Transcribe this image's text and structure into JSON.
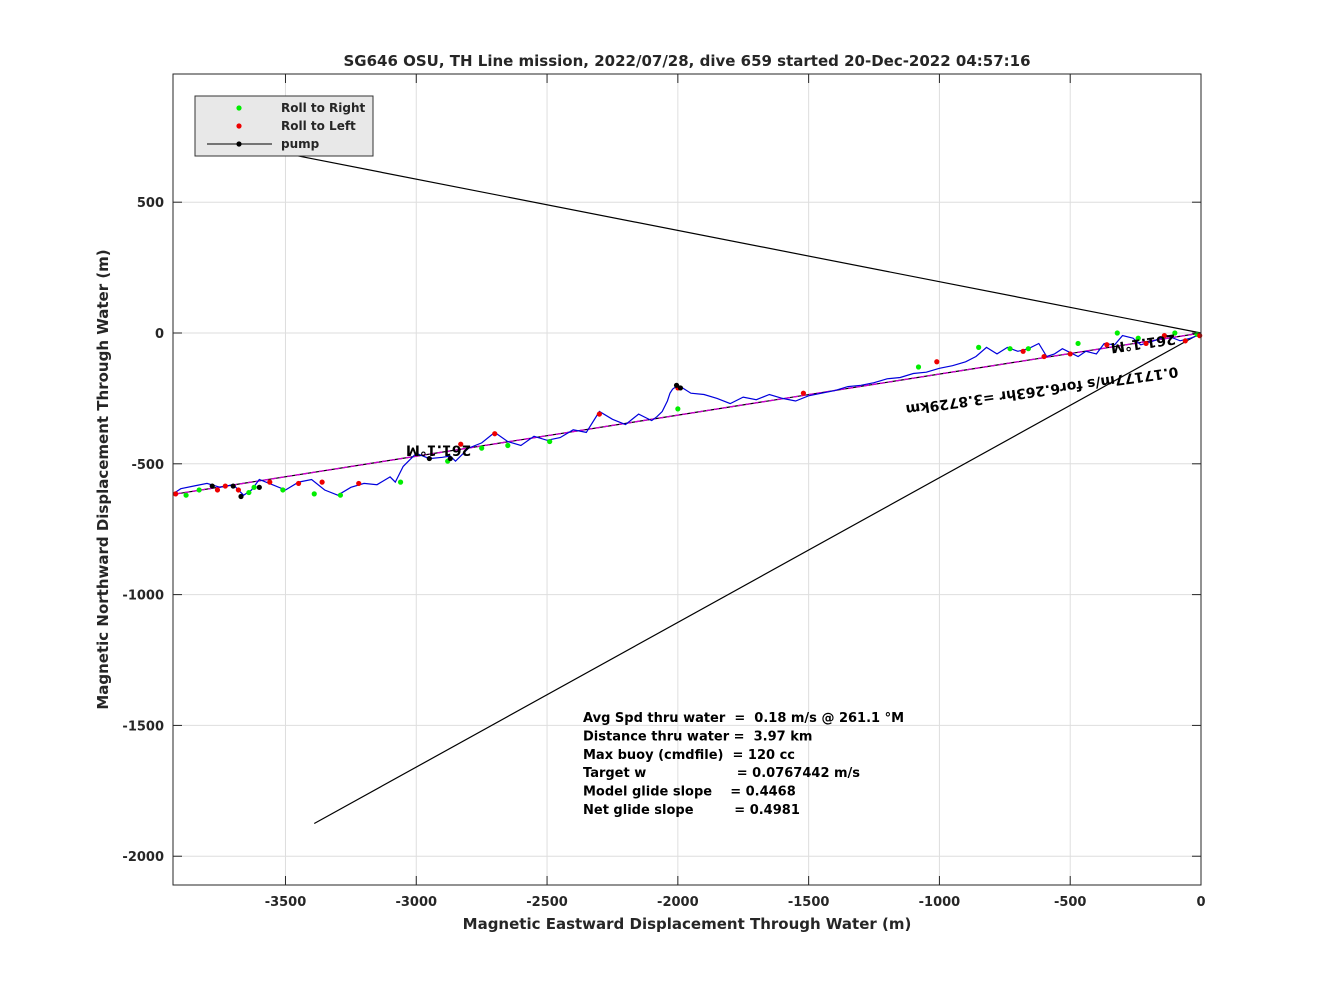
{
  "chart_data": {
    "type": "line",
    "title": "SG646 OSU, TH Line mission, 2022/07/28, dive 659 started 20-Dec-2022 04:57:16",
    "xlabel": "Magnetic Eastward Displacement Through Water (m)",
    "ylabel": "Magnetic Northward Displacement Through Water (m)",
    "xlim": [
      -3930,
      0
    ],
    "ylim": [
      -2110,
      990
    ],
    "xticks": [
      -3500,
      -3000,
      -2500,
      -2000,
      -1500,
      -1000,
      -500,
      0
    ],
    "yticks": [
      500,
      0,
      -500,
      -1000,
      -1500,
      -2000
    ],
    "grid": true,
    "legend": {
      "position": "top-left",
      "entries": [
        {
          "label": "Roll to Right",
          "color": "#00ee00"
        },
        {
          "label": "Roll to Left",
          "color": "#ee0000"
        },
        {
          "label": "pump",
          "color": "#000000"
        }
      ]
    },
    "colors": {
      "track": "#0000dd",
      "heading_line": "#cc00cc",
      "guide_lines": "#000000"
    },
    "guide_lines": [
      {
        "x": [
          0,
          -3800
        ],
        "y": [
          0,
          745
        ]
      },
      {
        "x": [
          0,
          -3390
        ],
        "y": [
          0,
          -1875
        ]
      }
    ],
    "heading_line": {
      "x": [
        0,
        -3930
      ],
      "y": [
        0,
        -617
      ]
    },
    "track": {
      "x": [
        0,
        -40,
        -80,
        -130,
        -180,
        -230,
        -260,
        -300,
        -330,
        -370,
        -400,
        -440,
        -470,
        -500,
        -530,
        -560,
        -590,
        -620,
        -660,
        -700,
        -740,
        -780,
        -820,
        -860,
        -900,
        -950,
        -1000,
        -1050,
        -1100,
        -1150,
        -1200,
        -1250,
        -1300,
        -1350,
        -1400,
        -1450,
        -1500,
        -1550,
        -1600,
        -1650,
        -1700,
        -1750,
        -1800,
        -1850,
        -1900,
        -1950,
        -1990,
        -2000,
        -2020,
        -2030,
        -2040,
        -2060,
        -2080,
        -2100,
        -2150,
        -2200,
        -2250,
        -2300,
        -2350,
        -2400,
        -2450,
        -2500,
        -2550,
        -2600,
        -2650,
        -2700,
        -2750,
        -2800,
        -2850,
        -2870,
        -2900,
        -2950,
        -3000,
        -3050,
        -3080,
        -3100,
        -3150,
        -3200,
        -3250,
        -3300,
        -3350,
        -3400,
        -3450,
        -3500,
        -3550,
        -3600,
        -3630,
        -3660,
        -3700,
        -3750,
        -3800,
        -3850,
        -3900,
        -3930
      ],
      "y": [
        -5,
        -20,
        -30,
        -10,
        -30,
        -45,
        -20,
        -10,
        -45,
        -40,
        -80,
        -70,
        -90,
        -75,
        -60,
        -80,
        -90,
        -40,
        -60,
        -70,
        -55,
        -80,
        -55,
        -90,
        -110,
        -125,
        -135,
        -150,
        -155,
        -170,
        -175,
        -190,
        -200,
        -205,
        -220,
        -230,
        -240,
        -260,
        -250,
        -235,
        -255,
        -245,
        -270,
        -250,
        -235,
        -230,
        -205,
        -200,
        -215,
        -230,
        -260,
        -300,
        -320,
        -335,
        -310,
        -350,
        -330,
        -300,
        -380,
        -370,
        -400,
        -410,
        -395,
        -430,
        -415,
        -380,
        -420,
        -440,
        -490,
        -470,
        -475,
        -480,
        -460,
        -510,
        -570,
        -550,
        -580,
        -575,
        -590,
        -620,
        -600,
        -560,
        -570,
        -600,
        -580,
        -560,
        -600,
        -620,
        -580,
        -590,
        -575,
        -585,
        -595,
        -615
      ]
    },
    "roll_right": {
      "x": [
        -15,
        -100,
        -240,
        -320,
        -470,
        -660,
        -730,
        -850,
        -1080,
        -2000,
        -2490,
        -2650,
        -2750,
        -2880,
        -3060,
        -3290,
        -3390,
        -3510,
        -3620,
        -3640,
        -3830,
        -3880
      ],
      "y": [
        -5,
        0,
        -20,
        0,
        -40,
        -60,
        -60,
        -55,
        -130,
        -290,
        -415,
        -430,
        -440,
        -490,
        -570,
        -620,
        -615,
        -600,
        -590,
        -610,
        -600,
        -620
      ]
    },
    "roll_left": {
      "x": [
        -5,
        -60,
        -140,
        -210,
        -360,
        -500,
        -600,
        -680,
        -1010,
        -1520,
        -2000,
        -2300,
        -2700,
        -2830,
        -3220,
        -3360,
        -3450,
        -3560,
        -3680,
        -3730,
        -3760,
        -3920
      ],
      "y": [
        -10,
        -30,
        -10,
        -40,
        -45,
        -80,
        -90,
        -70,
        -110,
        -230,
        -210,
        -310,
        -385,
        -425,
        -575,
        -570,
        -575,
        -570,
        -600,
        -585,
        -600,
        -615
      ]
    },
    "pumps": {
      "x": [
        -1990,
        -2005,
        -2870,
        -2950,
        -3600,
        -3670,
        -3700,
        -3780
      ],
      "y": [
        -210,
        -200,
        -480,
        -480,
        -590,
        -625,
        -585,
        -585
      ]
    },
    "annotations": [
      {
        "text": "261.1°M",
        "x": -2790,
        "y": -430,
        "rotation": 180
      },
      {
        "text": "261.1°M",
        "x": -100,
        "y": -5,
        "rotation": 172
      },
      {
        "text": "0.17177m/s for6.263hr =3.8729km",
        "x": -90,
        "y": -130,
        "rotation": 172
      }
    ],
    "stats": [
      "Avg Spd thru water  =  0.18 m/s @ 261.1 °M",
      "Distance thru water =  3.97 km",
      "Max buoy (cmdfile)  = 120 cc",
      "Target w                    = 0.0767442 m/s",
      "Model glide slope    = 0.4468",
      "Net glide slope         = 0.4981"
    ]
  }
}
